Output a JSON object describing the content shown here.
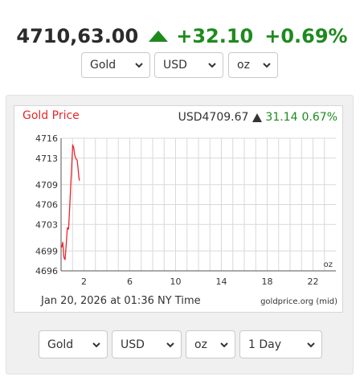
{
  "header": {
    "price": "4710,63.00",
    "change": "+32.10",
    "change_pct": "+0.69%",
    "direction": "up",
    "up_color": "#1e8a1e"
  },
  "top_selectors": {
    "metal": "Gold",
    "currency": "USD",
    "unit": "oz"
  },
  "chart": {
    "title": "Gold Price",
    "quote_currency_price": "USD4709.67",
    "quote_change": "31.14",
    "quote_change_pct": "0.67%",
    "unit_label": "oz",
    "date_text": "Jan 20, 2026 at 01:36 NY Time",
    "source_text": "goldprice.org (mid)",
    "line_color": "#e8262b"
  },
  "chart_data": {
    "type": "line",
    "title": "Gold Price",
    "xlabel": "",
    "ylabel": "",
    "x_ticks": [
      2,
      6,
      10,
      14,
      18,
      22
    ],
    "y_ticks": [
      4696,
      4699,
      4703,
      4706,
      4709,
      4713,
      4716
    ],
    "xlim": [
      0,
      24
    ],
    "ylim": [
      4696,
      4716
    ],
    "grid": true,
    "series": [
      {
        "values": [
          [
            0.05,
            4699.5
          ],
          [
            0.15,
            4700.3
          ],
          [
            0.25,
            4698.0
          ],
          [
            0.35,
            4697.7
          ],
          [
            0.45,
            4700.0
          ],
          [
            0.55,
            4702.5
          ],
          [
            0.65,
            4702.3
          ],
          [
            0.75,
            4705.5
          ],
          [
            0.85,
            4709.0
          ],
          [
            0.95,
            4712.5
          ],
          [
            1.02,
            4715.0
          ],
          [
            1.1,
            4714.6
          ],
          [
            1.2,
            4713.4
          ],
          [
            1.3,
            4712.9
          ],
          [
            1.4,
            4712.7
          ],
          [
            1.48,
            4711.5
          ],
          [
            1.55,
            4710.2
          ],
          [
            1.6,
            4709.6
          ]
        ]
      }
    ]
  },
  "bottom_selectors": {
    "metal": "Gold",
    "currency": "USD",
    "unit": "oz",
    "range": "1 Day"
  }
}
